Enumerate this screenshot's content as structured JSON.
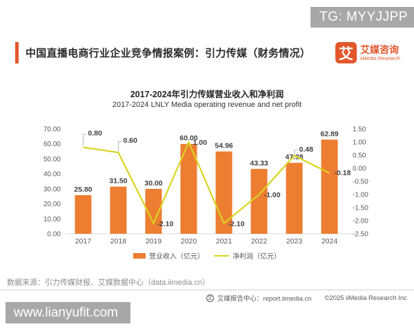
{
  "watermark": {
    "tg_handle": "TG: MYYJJPP",
    "site_link": "www.lianyufit.com"
  },
  "header": {
    "title": "中国直播电商行业企业竞争情报案例：引力传媒（财务情况）",
    "logo": {
      "glyph": "艾",
      "name_cn": "艾媒咨询",
      "name_en": "iiMedia Research"
    }
  },
  "chart_data": {
    "type": "bar+line combo",
    "title": "2017-2024年引力传媒营业收入和净利润",
    "subtitle": "2017-2024 LNLY Media operating revenue and net profit",
    "categories": [
      "2017",
      "2018",
      "2019",
      "2020",
      "2021",
      "2022",
      "2023",
      "2024"
    ],
    "series": [
      {
        "name": "营业收入（亿元）",
        "type": "bar",
        "axis": "left",
        "color": "#ED7D31",
        "values": [
          25.8,
          31.5,
          30.0,
          60.0,
          54.96,
          43.33,
          47.38,
          62.89
        ]
      },
      {
        "name": "净利润（亿元）",
        "type": "line",
        "axis": "right",
        "color": "#D9D41F",
        "values": [
          0.8,
          0.6,
          -2.1,
          1.0,
          -2.1,
          -1.0,
          0.48,
          -0.18
        ]
      }
    ],
    "left_axis": {
      "min": 0,
      "max": 70,
      "step": 10,
      "ticks": [
        "70.00",
        "60.00",
        "50.00",
        "40.00",
        "30.00",
        "20.00",
        "10.00",
        "0.00"
      ]
    },
    "right_axis": {
      "min": -2.5,
      "max": 1.5,
      "step": 0.5,
      "ticks": [
        "1.50",
        "1.00",
        "0.50",
        "0.00",
        "-0.50",
        "-1.00",
        "-1.50",
        "-2.00",
        "-2.50"
      ]
    },
    "legend_position": "bottom",
    "gridlines": false,
    "data_labels": true
  },
  "source_note": "数据来源：引力传媒财报、艾媒数据中心（data.iimedia.cn）",
  "footer": {
    "report_center": "艾媒报告中心：report.iimedia.cn",
    "copyright": "©2025  iiMedia Research  Inc"
  },
  "colors": {
    "accent_orange": "#E2572B",
    "bar_orange": "#ED7D31",
    "line_yellow": "#D9D41F",
    "overlay_gray": "#A8A8A8"
  }
}
